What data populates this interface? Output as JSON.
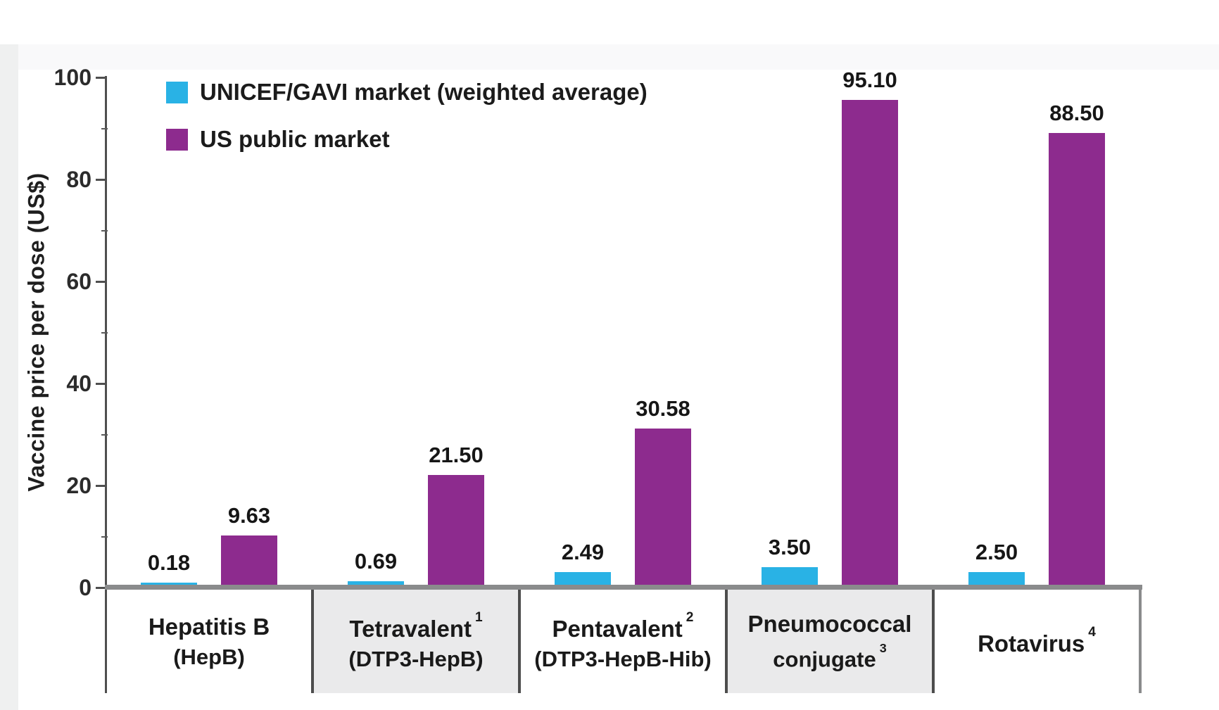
{
  "chart_data": {
    "type": "bar",
    "title": "",
    "ylabel": "Vaccine price per dose (US$)",
    "xlabel": "",
    "ylim": [
      0,
      100
    ],
    "yticks": [
      0,
      20,
      40,
      60,
      80,
      100
    ],
    "y_minor_ticks": [
      10,
      30,
      50,
      70,
      90
    ],
    "grid": false,
    "legend_position": "top-left",
    "categories": [
      {
        "label": "Hepatitis B",
        "label_sup": "",
        "sublabel": "(HepB)",
        "sublabel_sup": ""
      },
      {
        "label": "Tetravalent",
        "label_sup": "1",
        "sublabel": "(DTP3-HepB)",
        "sublabel_sup": ""
      },
      {
        "label": "Pentavalent",
        "label_sup": "2",
        "sublabel": "(DTP3-HepB-Hib)",
        "sublabel_sup": ""
      },
      {
        "label": "Pneumococcal",
        "label_sup": "",
        "sublabel": "conjugate",
        "sublabel_sup": "3"
      },
      {
        "label": "Rotavirus",
        "label_sup": "4",
        "sublabel": "",
        "sublabel_sup": ""
      }
    ],
    "series": [
      {
        "name": "UNICEF/GAVI market (weighted average)",
        "color": "#29b2e5",
        "values": [
          0.18,
          0.69,
          2.49,
          3.5,
          2.5
        ],
        "value_labels": [
          "0.18",
          "0.69",
          "2.49",
          "3.50",
          "2.50"
        ]
      },
      {
        "name": "US public market",
        "color": "#8d2b8e",
        "values": [
          9.63,
          21.5,
          30.58,
          95.1,
          88.5
        ],
        "value_labels": [
          "9.63",
          "21.50",
          "30.58",
          "95.10",
          "88.50"
        ]
      }
    ],
    "colors": {
      "axis": "#4f4f4f",
      "baseline": "#8a8b8c",
      "divider": "#4d4d4d",
      "value_text": "#161616",
      "category_box_bg": "#ffffff",
      "category_box_alt_bg": "#eaeaeb",
      "page_margin": "#eff0f0"
    }
  }
}
